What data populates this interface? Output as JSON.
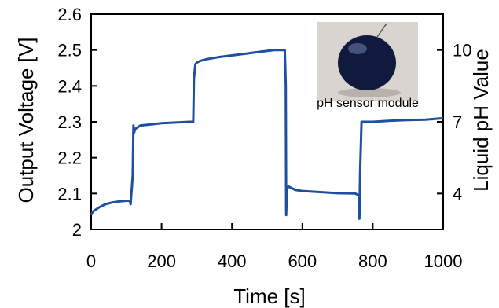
{
  "chart_data": {
    "type": "line",
    "xlabel": "Time [s]",
    "ylabel": "Output Voltage [V]",
    "y2label": "Liquid pH Value",
    "xlim": [
      0,
      1000
    ],
    "ylim": [
      2.0,
      2.6
    ],
    "x_ticks": [
      "0",
      "200",
      "400",
      "600",
      "800",
      "1000"
    ],
    "y_ticks": [
      "2",
      "2.1",
      "2.2",
      "2.3",
      "2.4",
      "2.5",
      "2.6"
    ],
    "y2_ticks": [
      {
        "label": "10",
        "at_voltage": 2.5
      },
      {
        "label": "7",
        "at_voltage": 2.3
      },
      {
        "label": "4",
        "at_voltage": 2.1
      }
    ],
    "grid": false,
    "legend": "none",
    "inset_caption": "pH sensor module",
    "series": [
      {
        "color": "#1f4fa0",
        "x": [
          0,
          5,
          20,
          40,
          60,
          80,
          100,
          110,
          112,
          118,
          120,
          122,
          125,
          140,
          160,
          200,
          240,
          280,
          290,
          292,
          296,
          300,
          310,
          330,
          360,
          400,
          440,
          480,
          520,
          550,
          553,
          554,
          556,
          560,
          570,
          580,
          600,
          650,
          700,
          750,
          760,
          762,
          764,
          768,
          800,
          850,
          900,
          950,
          1000
        ],
        "y": [
          2.04,
          2.05,
          2.06,
          2.07,
          2.075,
          2.078,
          2.08,
          2.08,
          2.07,
          2.15,
          2.29,
          2.27,
          2.28,
          2.29,
          2.292,
          2.296,
          2.298,
          2.3,
          2.3,
          2.42,
          2.46,
          2.465,
          2.47,
          2.475,
          2.48,
          2.485,
          2.49,
          2.495,
          2.5,
          2.5,
          2.4,
          2.04,
          2.11,
          2.12,
          2.115,
          2.11,
          2.107,
          2.104,
          2.101,
          2.1,
          2.095,
          2.03,
          2.16,
          2.3,
          2.3,
          2.303,
          2.305,
          2.306,
          2.31
        ]
      }
    ]
  }
}
